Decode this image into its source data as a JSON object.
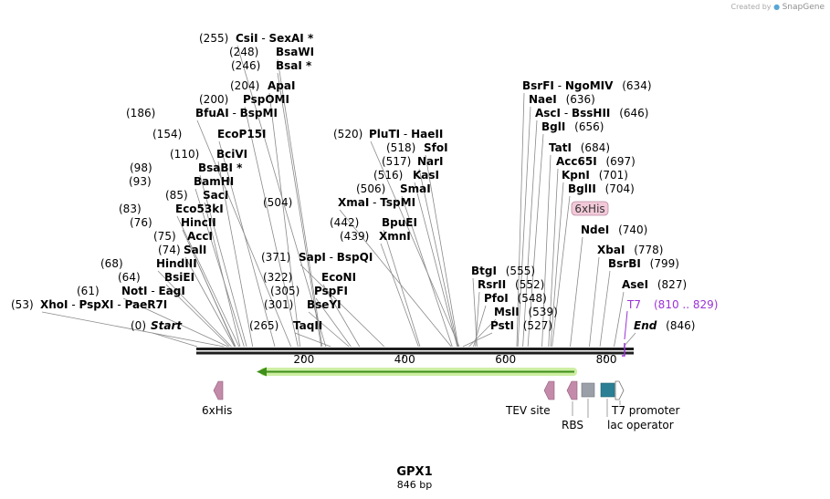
{
  "watermark": {
    "prefix": "Created by",
    "brand": "SnapGene"
  },
  "title": "GPX1",
  "subtitle": "846 bp",
  "sequence_length": 846,
  "colors": {
    "backbone": "#1e1e1e",
    "orf_line": "#3f8f1a",
    "orf_glow": "#cdeea4",
    "his_tag_feature": "#c48aaa",
    "t7_label": "#9a33d6",
    "rbs_box": "#9ba0a8",
    "lac_box": "#2a7f95",
    "leader": "#8a8a8a"
  },
  "axis_ticks": [
    200,
    400,
    600,
    800
  ],
  "sites": [
    {
      "pos": 0,
      "names": [
        "Start"
      ],
      "label_pos": "(0)",
      "italic": true
    },
    {
      "pos": 53,
      "names": [
        "XhoI",
        "PspXI",
        "PaeR7I"
      ],
      "label_pos": "(53)"
    },
    {
      "pos": 61,
      "names": [
        "NotI",
        "EagI"
      ],
      "label_pos": "(61)"
    },
    {
      "pos": 64,
      "names": [
        "BsiEI"
      ],
      "label_pos": "(64)"
    },
    {
      "pos": 68,
      "names": [
        "HindIII"
      ],
      "label_pos": "(68)"
    },
    {
      "pos": 74,
      "names": [
        "SalI"
      ],
      "label_pos": "(74)"
    },
    {
      "pos": 75,
      "names": [
        "AccI"
      ],
      "label_pos": "(75)"
    },
    {
      "pos": 76,
      "names": [
        "HincII"
      ],
      "label_pos": "(76)"
    },
    {
      "pos": 83,
      "names": [
        "Eco53kI"
      ],
      "label_pos": "(83)"
    },
    {
      "pos": 85,
      "names": [
        "SacI"
      ],
      "label_pos": "(85)"
    },
    {
      "pos": 93,
      "names": [
        "BamHI"
      ],
      "label_pos": "(93)"
    },
    {
      "pos": 98,
      "names": [
        "BsaBI *"
      ],
      "label_pos": "(98)"
    },
    {
      "pos": 110,
      "names": [
        "BciVI"
      ],
      "label_pos": "(110)"
    },
    {
      "pos": 154,
      "names": [
        "EcoP15I"
      ],
      "label_pos": "(154)"
    },
    {
      "pos": 186,
      "names": [
        "BfuAI",
        "BspMI"
      ],
      "label_pos": "(186)"
    },
    {
      "pos": 200,
      "names": [
        "PspOMI"
      ],
      "label_pos": "(200)"
    },
    {
      "pos": 204,
      "names": [
        "ApaI"
      ],
      "label_pos": "(204)"
    },
    {
      "pos": 246,
      "names": [
        "BsaI *"
      ],
      "label_pos": "(246)"
    },
    {
      "pos": 248,
      "names": [
        "BsaWI"
      ],
      "label_pos": "(248)"
    },
    {
      "pos": 255,
      "names": [
        "CsiI",
        "SexAI *"
      ],
      "label_pos": "(255)"
    },
    {
      "pos": 265,
      "names": [
        "TaqII"
      ],
      "label_pos": "(265)"
    },
    {
      "pos": 301,
      "names": [
        "BseYI"
      ],
      "label_pos": "(301)"
    },
    {
      "pos": 305,
      "names": [
        "PspFI"
      ],
      "label_pos": "(305)"
    },
    {
      "pos": 322,
      "names": [
        "EcoNI"
      ],
      "label_pos": "(322)"
    },
    {
      "pos": 371,
      "names": [
        "SapI",
        "BspQI"
      ],
      "label_pos": "(371)"
    },
    {
      "pos": 439,
      "names": [
        "XmnI"
      ],
      "label_pos": "(439)"
    },
    {
      "pos": 442,
      "names": [
        "BpuEI"
      ],
      "label_pos": "(442)"
    },
    {
      "pos": 504,
      "names": [
        "XmaI",
        "TspMI"
      ],
      "label_pos": "(504)"
    },
    {
      "pos": 506,
      "names": [
        "SmaI"
      ],
      "label_pos": "(506)"
    },
    {
      "pos": 516,
      "names": [
        "KasI"
      ],
      "label_pos": "(516)"
    },
    {
      "pos": 517,
      "names": [
        "NarI"
      ],
      "label_pos": "(517)"
    },
    {
      "pos": 518,
      "names": [
        "SfoI"
      ],
      "label_pos": "(518)"
    },
    {
      "pos": 520,
      "names": [
        "PluTI",
        "HaeII"
      ],
      "label_pos": "(520)"
    },
    {
      "pos": 527,
      "names": [
        "PstI"
      ],
      "label_pos": "(527)"
    },
    {
      "pos": 539,
      "names": [
        "MslI"
      ],
      "label_pos": "(539)"
    },
    {
      "pos": 548,
      "names": [
        "PfoI"
      ],
      "label_pos": "(548)"
    },
    {
      "pos": 552,
      "names": [
        "RsrII"
      ],
      "label_pos": "(552)"
    },
    {
      "pos": 555,
      "names": [
        "BtgI"
      ],
      "label_pos": "(555)"
    },
    {
      "pos": 634,
      "names": [
        "BsrFI",
        "NgoMIV"
      ],
      "label_pos": "(634)"
    },
    {
      "pos": 636,
      "names": [
        "NaeI"
      ],
      "label_pos": "(636)"
    },
    {
      "pos": 646,
      "names": [
        "AscI",
        "BssHII"
      ],
      "label_pos": "(646)"
    },
    {
      "pos": 656,
      "names": [
        "BglI"
      ],
      "label_pos": "(656)"
    },
    {
      "pos": 684,
      "names": [
        "TatI"
      ],
      "label_pos": "(684)"
    },
    {
      "pos": 697,
      "names": [
        "Acc65I"
      ],
      "label_pos": "(697)"
    },
    {
      "pos": 701,
      "names": [
        "KpnI"
      ],
      "label_pos": "(701)"
    },
    {
      "pos": 704,
      "names": [
        "BglII"
      ],
      "label_pos": "(704)"
    },
    {
      "pos": 740,
      "names": [
        "NdeI"
      ],
      "label_pos": "(740)"
    },
    {
      "pos": 778,
      "names": [
        "XbaI"
      ],
      "label_pos": "(778)"
    },
    {
      "pos": 799,
      "names": [
        "BsrBI"
      ],
      "label_pos": "(799)"
    },
    {
      "pos": 827,
      "names": [
        "AseI"
      ],
      "label_pos": "(827)"
    },
    {
      "pos": 846,
      "names": [
        "End"
      ],
      "label_pos": "(846)",
      "italic": true
    }
  ],
  "features": {
    "his_tag_top": {
      "label": "6xHis"
    },
    "t7_top": {
      "label": "T7",
      "range": "(810 .. 829)"
    },
    "orf": {
      "direction": "reverse"
    },
    "his_tag_bottom": {
      "label": "6xHis"
    },
    "tev": {
      "label": "TEV site"
    },
    "rbs": {
      "label": "RBS"
    },
    "t7_promoter": {
      "label": "T7 promoter"
    },
    "lac_operator": {
      "label": "lac operator"
    }
  }
}
